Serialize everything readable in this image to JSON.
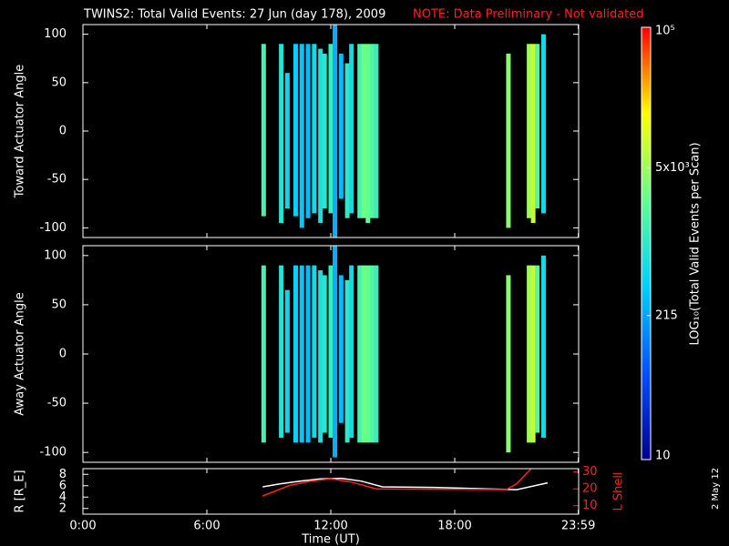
{
  "title": "TWINS2: Total Valid Events: 27 Jun (day 178), 2009",
  "note": "NOTE: Data Preliminary - Not validated",
  "side_note": "2 May 12",
  "chart_data": [
    {
      "type": "heatmap",
      "ylabel": "Toward Actuator Angle",
      "ylim": [
        -110,
        110
      ],
      "yticks": [
        -100,
        -50,
        0,
        50,
        100
      ],
      "colorbar": {
        "label": "LOG₁₀(Total Valid Events per Scan)",
        "log": true,
        "lim": [
          10,
          100000
        ],
        "ticks": [
          10,
          215,
          {
            "value": 5000,
            "label": "5x10³"
          },
          {
            "value": 100000,
            "label": "10⁵"
          }
        ],
        "colormap": [
          "#00008c",
          "#0050ff",
          "#00d0ff",
          "#60ff90",
          "#ffff00",
          "#ff0000"
        ]
      },
      "stripes": [
        {
          "time": 8.75,
          "min": -88,
          "max": 90,
          "value": 1500
        },
        {
          "time": 9.6,
          "min": -95,
          "max": 90,
          "value": 800
        },
        {
          "time": 9.9,
          "min": -80,
          "max": 60,
          "value": 500
        },
        {
          "time": 10.3,
          "min": -88,
          "max": 90,
          "value": 400
        },
        {
          "time": 10.6,
          "min": -100,
          "max": 90,
          "value": 350
        },
        {
          "time": 10.9,
          "min": -90,
          "max": 90,
          "value": 300
        },
        {
          "time": 11.2,
          "min": -85,
          "max": 90,
          "value": 600
        },
        {
          "time": 11.5,
          "min": -95,
          "max": 85,
          "value": 700
        },
        {
          "time": 11.7,
          "min": -80,
          "max": 80,
          "value": 900
        },
        {
          "time": 12.0,
          "min": -85,
          "max": 90,
          "value": 1200
        },
        {
          "time": 12.2,
          "min": -110,
          "max": 110,
          "value": 250
        },
        {
          "time": 12.5,
          "min": -70,
          "max": 80,
          "value": 300
        },
        {
          "time": 12.8,
          "min": -90,
          "max": 70,
          "value": 1000
        },
        {
          "time": 13.0,
          "min": -85,
          "max": 90,
          "value": 600
        },
        {
          "time": 13.4,
          "min": -90,
          "max": 90,
          "value": 1500
        },
        {
          "time": 13.6,
          "min": -90,
          "max": 90,
          "value": 3000
        },
        {
          "time": 13.8,
          "min": -95,
          "max": 90,
          "value": 2500
        },
        {
          "time": 14.0,
          "min": -90,
          "max": 90,
          "value": 1800
        },
        {
          "time": 14.2,
          "min": -90,
          "max": 90,
          "value": 1200
        },
        {
          "time": 20.6,
          "min": -100,
          "max": 80,
          "value": 4000
        },
        {
          "time": 21.6,
          "min": -90,
          "max": 90,
          "value": 5000
        },
        {
          "time": 21.8,
          "min": -95,
          "max": 90,
          "value": 8000
        },
        {
          "time": 22.0,
          "min": -80,
          "max": 90,
          "value": 2000
        },
        {
          "time": 22.3,
          "min": -85,
          "max": 100,
          "value": 600
        }
      ]
    },
    {
      "type": "heatmap",
      "ylabel": "Away Actuator Angle",
      "ylim": [
        -110,
        110
      ],
      "yticks": [
        -100,
        -50,
        0,
        50,
        100
      ],
      "stripes": [
        {
          "time": 8.75,
          "min": -90,
          "max": 90,
          "value": 1500
        },
        {
          "time": 9.6,
          "min": -85,
          "max": 90,
          "value": 800
        },
        {
          "time": 9.9,
          "min": -80,
          "max": 65,
          "value": 500
        },
        {
          "time": 10.3,
          "min": -90,
          "max": 90,
          "value": 450
        },
        {
          "time": 10.6,
          "min": -90,
          "max": 90,
          "value": 350
        },
        {
          "time": 10.9,
          "min": -90,
          "max": 90,
          "value": 300
        },
        {
          "time": 11.2,
          "min": -85,
          "max": 90,
          "value": 600
        },
        {
          "time": 11.5,
          "min": -90,
          "max": 85,
          "value": 700
        },
        {
          "time": 11.7,
          "min": -80,
          "max": 80,
          "value": 900
        },
        {
          "time": 12.0,
          "min": -85,
          "max": 90,
          "value": 1200
        },
        {
          "time": 12.2,
          "min": -105,
          "max": 110,
          "value": 250
        },
        {
          "time": 12.5,
          "min": -70,
          "max": 80,
          "value": 300
        },
        {
          "time": 12.8,
          "min": -90,
          "max": 75,
          "value": 1000
        },
        {
          "time": 13.0,
          "min": -85,
          "max": 90,
          "value": 600
        },
        {
          "time": 13.4,
          "min": -90,
          "max": 90,
          "value": 1500
        },
        {
          "time": 13.6,
          "min": -90,
          "max": 90,
          "value": 3000
        },
        {
          "time": 13.8,
          "min": -90,
          "max": 90,
          "value": 2500
        },
        {
          "time": 14.0,
          "min": -90,
          "max": 90,
          "value": 1800
        },
        {
          "time": 14.2,
          "min": -90,
          "max": 90,
          "value": 1200
        },
        {
          "time": 20.6,
          "min": -100,
          "max": 80,
          "value": 4000
        },
        {
          "time": 21.6,
          "min": -90,
          "max": 90,
          "value": 5000
        },
        {
          "time": 21.8,
          "min": -90,
          "max": 90,
          "value": 8000
        },
        {
          "time": 22.0,
          "min": -80,
          "max": 90,
          "value": 2000
        },
        {
          "time": 22.3,
          "min": -85,
          "max": 100,
          "value": 600
        }
      ]
    },
    {
      "type": "line",
      "xlabel": "Time (UT)",
      "ylabel": "R [R_E]",
      "y2label": "L Shell",
      "xlim": [
        0,
        24
      ],
      "xticks": [
        {
          "value": 0,
          "label": "0:00"
        },
        {
          "value": 6,
          "label": "6:00"
        },
        {
          "value": 12,
          "label": "12:00"
        },
        {
          "value": 18,
          "label": "18:00"
        },
        {
          "value": 23.983,
          "label": "23:59"
        }
      ],
      "ylim": [
        1,
        9
      ],
      "yticks": [
        2,
        4,
        6,
        8
      ],
      "y2lim": [
        5,
        32
      ],
      "y2ticks": [
        10,
        20,
        30
      ],
      "series": [
        {
          "color": "#ffffff",
          "x": [
            8.7,
            9.5,
            10.5,
            11.5,
            12.5,
            13.5,
            14.5,
            17,
            20,
            21,
            22.5
          ],
          "values": [
            5.8,
            6.3,
            6.8,
            7.2,
            7.3,
            6.8,
            5.8,
            5.7,
            5.4,
            5.3,
            6.5
          ]
        },
        {
          "color": "#ff2020",
          "axis": "y2",
          "x": [
            8.7,
            10,
            11,
            12,
            13,
            14.2,
            17,
            20.5,
            21,
            21.7
          ],
          "values": [
            15.8,
            22,
            24.5,
            26,
            24,
            20,
            19.8,
            19.6,
            23,
            32
          ]
        }
      ]
    }
  ]
}
